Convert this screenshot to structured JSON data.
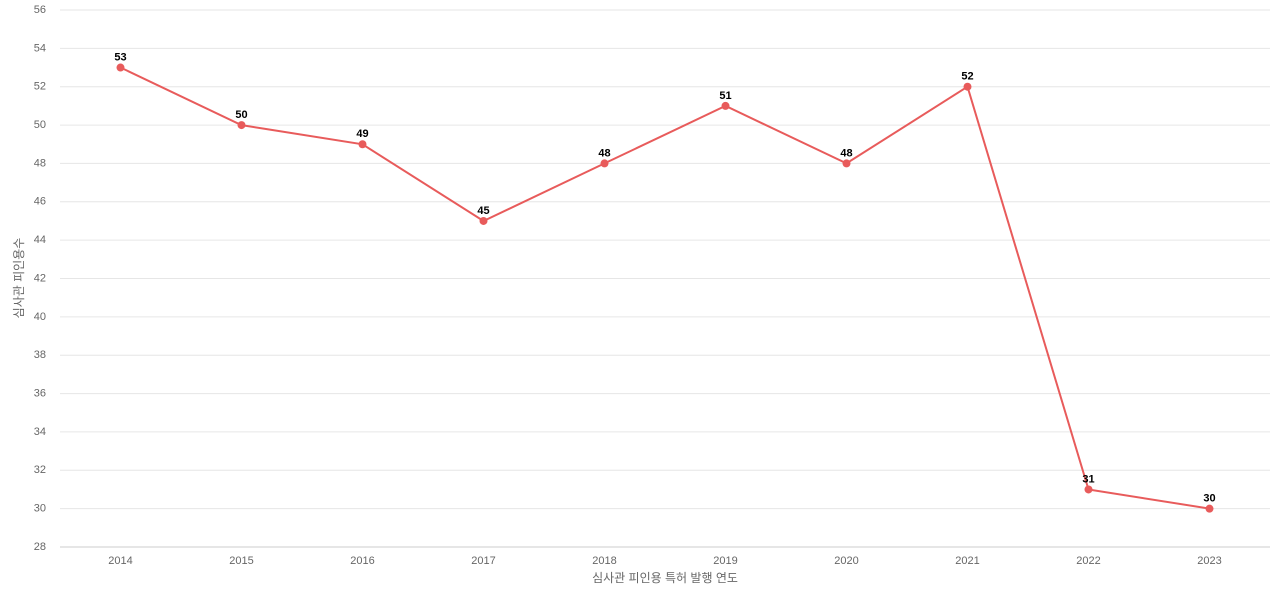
{
  "chart_data": {
    "type": "line",
    "x_label": "심사관 피인용 특허 발행 연도",
    "y_label": "심사관 피인용수",
    "categories": [
      "2014",
      "2015",
      "2016",
      "2017",
      "2018",
      "2019",
      "2020",
      "2021",
      "2022",
      "2023"
    ],
    "values": [
      53,
      50,
      49,
      45,
      48,
      51,
      48,
      52,
      31,
      30
    ],
    "color": "#e85b5b",
    "ylim": [
      28,
      56
    ],
    "yticks": [
      28,
      30,
      32,
      34,
      36,
      38,
      40,
      42,
      44,
      46,
      48,
      50,
      52,
      54,
      56
    ],
    "grid": true
  }
}
